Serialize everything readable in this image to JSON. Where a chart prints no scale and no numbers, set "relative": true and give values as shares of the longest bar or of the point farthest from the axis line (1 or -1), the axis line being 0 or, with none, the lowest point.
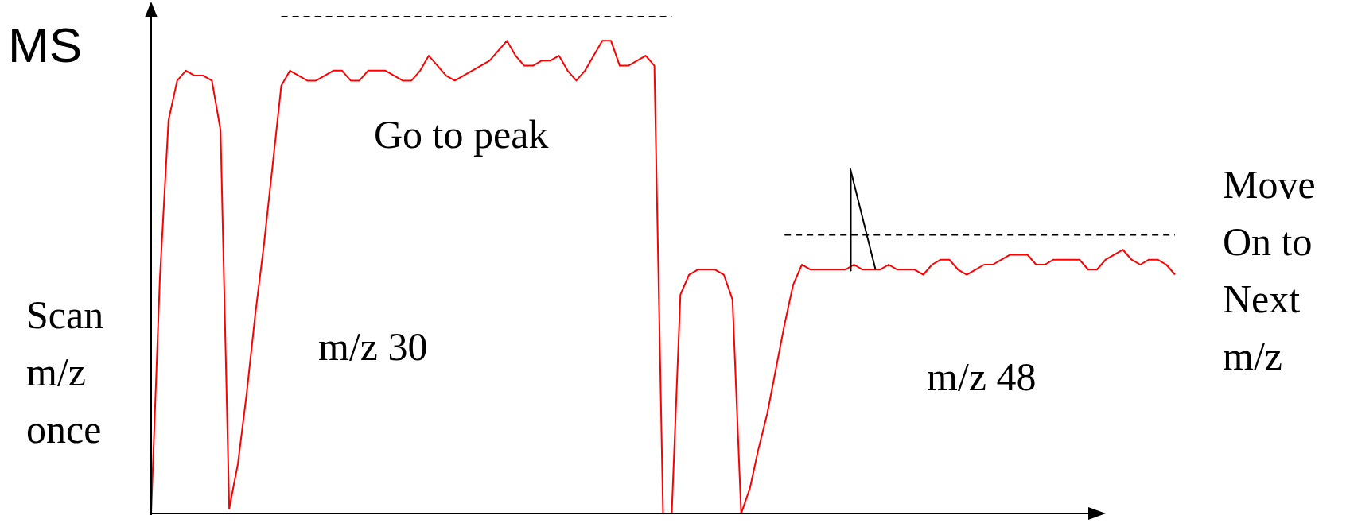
{
  "chart_data": {
    "type": "line",
    "relative": true,
    "ylabel": "MS",
    "marker": "none",
    "legend": false,
    "annotations": [
      "Scan\nm/z\nonce",
      "Go to peak",
      "m/z 30",
      "m/z 48",
      "Move\nOn to\nNext\nm/z"
    ],
    "categories": [
      null,
      null,
      null,
      null,
      null,
      null,
      null,
      null,
      null,
      null,
      null,
      null,
      null,
      null,
      null,
      null,
      null,
      null,
      null,
      null,
      null,
      null,
      null,
      null,
      null,
      null,
      null,
      null,
      null,
      null,
      null,
      null,
      null,
      null,
      null,
      null,
      null,
      null,
      null,
      null,
      null,
      null,
      null,
      null,
      null,
      null,
      null,
      null,
      null,
      null,
      null,
      null,
      null,
      null,
      null,
      null,
      null,
      null,
      null,
      null,
      null,
      null,
      null,
      null,
      null,
      null,
      null,
      null,
      null,
      null,
      null,
      null,
      null,
      null,
      null,
      null,
      null,
      null,
      null,
      null,
      null,
      null,
      null,
      null,
      null,
      null,
      null,
      null,
      null,
      null,
      null,
      null,
      null,
      null,
      null,
      null,
      null,
      null,
      null,
      null,
      null,
      null,
      null,
      null,
      null,
      null,
      null,
      null,
      null,
      null,
      null,
      null,
      null,
      null,
      null,
      null,
      null,
      null,
      null
    ],
    "series": [
      {
        "color": "#ff0000",
        "line_style": "solid",
        "values": [
          0,
          0.47,
          0.79,
          0.87,
          0.89,
          0.88,
          0.88,
          0.87,
          0.77,
          0.01,
          0.1,
          0.24,
          0.4,
          0.54,
          0.7,
          0.86,
          0.89,
          0.88,
          0.87,
          0.87,
          0.88,
          0.89,
          0.89,
          0.87,
          0.87,
          0.89,
          0.89,
          0.89,
          0.88,
          0.87,
          0.87,
          0.89,
          0.92,
          0.9,
          0.88,
          0.87,
          0.88,
          0.89,
          0.9,
          0.91,
          0.93,
          0.95,
          0.92,
          0.9,
          0.9,
          0.91,
          0.91,
          0.92,
          0.89,
          0.87,
          0.89,
          0.92,
          0.95,
          0.95,
          0.9,
          0.9,
          0.91,
          0.92,
          0.9,
          0,
          0,
          0.44,
          0.48,
          0.49,
          0.49,
          0.49,
          0.48,
          0.43,
          0,
          0.05,
          0.13,
          0.2,
          0.29,
          0.38,
          0.46,
          0.5,
          0.49,
          0.49,
          0.49,
          0.49,
          0.49,
          0.5,
          0.49,
          0.49,
          0.49,
          0.5,
          0.49,
          0.49,
          0.49,
          0.48,
          0.5,
          0.51,
          0.51,
          0.49,
          0.48,
          0.49,
          0.5,
          0.5,
          0.51,
          0.52,
          0.52,
          0.52,
          0.5,
          0.5,
          0.51,
          0.51,
          0.51,
          0.51,
          0.49,
          0.49,
          0.51,
          0.52,
          0.53,
          0.51,
          0.5,
          0.51,
          0.51,
          0.5,
          0.48
        ]
      },
      {
        "color": "#000000",
        "line_style": "dashed",
        "values": [
          null,
          null,
          null,
          null,
          null,
          null,
          null,
          null,
          null,
          null,
          null,
          null,
          null,
          null,
          null,
          1,
          1,
          1,
          1,
          1,
          1,
          1,
          1,
          1,
          1,
          1,
          1,
          1,
          1,
          1,
          1,
          1,
          1,
          1,
          1,
          1,
          1,
          1,
          1,
          1,
          1,
          1,
          1,
          1,
          1,
          1,
          1,
          1,
          1,
          1,
          1,
          1,
          1,
          1,
          1,
          1,
          1,
          1,
          1,
          1,
          1,
          null,
          null,
          null,
          null,
          null,
          null,
          null,
          null,
          null,
          null,
          null,
          null,
          null,
          null,
          null,
          null,
          null,
          null,
          null,
          null,
          null,
          null,
          null,
          null,
          null,
          null,
          null,
          null,
          null,
          null,
          null,
          null,
          null,
          null,
          null,
          null,
          null,
          null,
          null,
          null,
          null,
          null,
          null,
          null,
          null,
          null,
          null,
          null,
          null,
          null,
          null,
          null,
          null,
          null,
          null,
          null,
          null,
          null
        ]
      },
      {
        "color": "#000000",
        "line_style": "dashed",
        "values": [
          null,
          null,
          null,
          null,
          null,
          null,
          null,
          null,
          null,
          null,
          null,
          null,
          null,
          null,
          null,
          null,
          null,
          null,
          null,
          null,
          null,
          null,
          null,
          null,
          null,
          null,
          null,
          null,
          null,
          null,
          null,
          null,
          null,
          null,
          null,
          null,
          null,
          null,
          null,
          null,
          null,
          null,
          null,
          null,
          null,
          null,
          null,
          null,
          null,
          null,
          null,
          null,
          null,
          null,
          null,
          null,
          null,
          null,
          null,
          null,
          null,
          null,
          null,
          null,
          null,
          null,
          null,
          null,
          null,
          null,
          null,
          null,
          null,
          0.56,
          0.56,
          0.56,
          0.56,
          0.56,
          0.56,
          0.56,
          0.56,
          0.56,
          0.56,
          0.56,
          0.56,
          0.56,
          0.56,
          0.56,
          0.56,
          0.56,
          0.56,
          0.56,
          0.56,
          0.56,
          0.56,
          0.56,
          0.56,
          0.56,
          0.56,
          0.56,
          0.56,
          0.56,
          0.56,
          0.56,
          0.56,
          0.56,
          0.56,
          0.56,
          0.56,
          0.56,
          0.56,
          0.56,
          0.56,
          0.56,
          0.56,
          0.56,
          0.56,
          0.56,
          0.56
        ]
      }
    ]
  }
}
